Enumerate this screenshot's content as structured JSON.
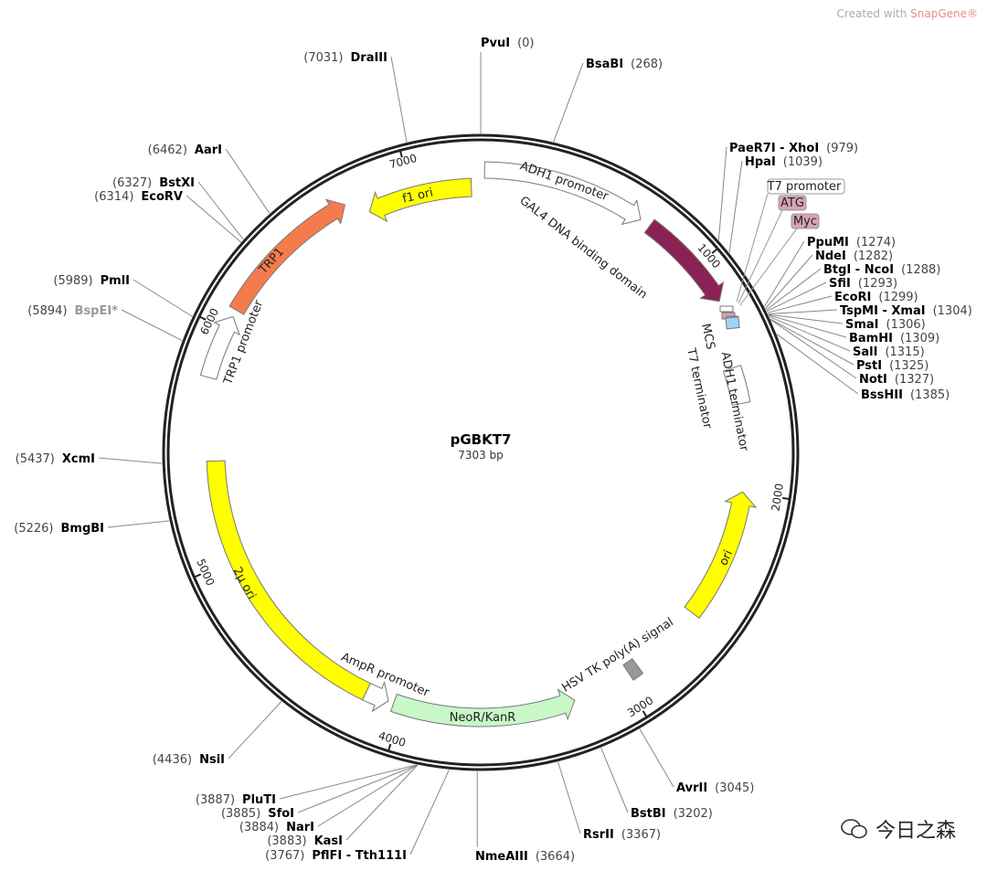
{
  "watermark": {
    "prefix": "Created with ",
    "brand": "SnapGene®"
  },
  "wechat": {
    "text": "今日之森"
  },
  "plasmid": {
    "name": "pGBKT7",
    "length_label": "7303 bp",
    "length": 7303
  },
  "ticks": [
    "1000",
    "2000",
    "3000",
    "4000",
    "5000",
    "6000",
    "7000"
  ],
  "features": [
    {
      "label": "f1 ori",
      "start": 6800,
      "end": 7262,
      "dir": -1,
      "color": "#ffff00",
      "track": "B"
    },
    {
      "label": "ADH1 promoter",
      "start": 16,
      "end": 700,
      "dir": 1,
      "color": "#ffffff",
      "track": "A"
    },
    {
      "label": "GAL4 DNA binding domain",
      "start": 745,
      "end": 1170,
      "dir": 1,
      "color": "#8b2255",
      "track": "A"
    },
    {
      "label": "ADH1 terminator",
      "start": 1450,
      "end": 1610,
      "dir": 0,
      "color": "#ffffff",
      "track": "B"
    },
    {
      "label": "ori",
      "start": 2000,
      "end": 2580,
      "dir": -1,
      "color": "#ffff00",
      "track": "B"
    },
    {
      "label": "HSV TK poly(A) signal",
      "start": 2915,
      "end": 2965,
      "dir": 0,
      "color": "#999999",
      "track": "B"
    },
    {
      "label": "NeoR/KanR",
      "start": 3230,
      "end": 4040,
      "dir": -1,
      "color": "#c8f7c8",
      "track": "B"
    },
    {
      "label": "AmpR promoter",
      "start": 4065,
      "end": 4170,
      "dir": -1,
      "color": "#ffffff",
      "track": "B"
    },
    {
      "label": "2μ ori",
      "start": 4170,
      "end": 5440,
      "dir": 0,
      "color": "#ffff00",
      "track": "B"
    },
    {
      "label": "TRP1 promoter",
      "start": 5790,
      "end": 6060,
      "dir": 1,
      "color": "#ffffff",
      "track": "A"
    },
    {
      "label": "TRP1",
      "start": 6090,
      "end": 6720,
      "dir": 1,
      "color": "#f47c4c",
      "track": "A"
    }
  ],
  "small_features": [
    {
      "label": "T7 promoter",
      "color": "#ffffff"
    },
    {
      "label": "ATG",
      "color": "#d8a3b8"
    },
    {
      "label": "Myc",
      "color": "#d8a3b8"
    },
    {
      "label": "MCS",
      "color": "#d8a3b8"
    },
    {
      "label": "T7 terminator",
      "color": "#9fd2f5"
    }
  ],
  "sites": [
    {
      "name": "PvuI",
      "pos": 0
    },
    {
      "name": "BsaBI",
      "pos": 268
    },
    {
      "name": "PaeR7I - XhoI",
      "pos": 979
    },
    {
      "name": "HpaI",
      "pos": 1039
    },
    {
      "name": "PpuMI",
      "pos": 1274
    },
    {
      "name": "NdeI",
      "pos": 1282
    },
    {
      "name": "BtgI - NcoI",
      "pos": 1288
    },
    {
      "name": "SfiI",
      "pos": 1293
    },
    {
      "name": "EcoRI",
      "pos": 1299
    },
    {
      "name": "TspMI - XmaI",
      "pos": 1304
    },
    {
      "name": "SmaI",
      "pos": 1306
    },
    {
      "name": "BamHI",
      "pos": 1309
    },
    {
      "name": "SalI",
      "pos": 1315
    },
    {
      "name": "PstI",
      "pos": 1325
    },
    {
      "name": "NotI",
      "pos": 1327
    },
    {
      "name": "BssHII",
      "pos": 1385
    },
    {
      "name": "AvrII",
      "pos": 3045
    },
    {
      "name": "BstBI",
      "pos": 3202
    },
    {
      "name": "RsrII",
      "pos": 3367
    },
    {
      "name": "NmeAIII",
      "pos": 3664
    },
    {
      "name": "PflFI - Tth111I",
      "pos": 3767
    },
    {
      "name": "KasI",
      "pos": 3883
    },
    {
      "name": "NarI",
      "pos": 3884
    },
    {
      "name": "SfoI",
      "pos": 3885
    },
    {
      "name": "PluTI",
      "pos": 3887
    },
    {
      "name": "NsiI",
      "pos": 4436
    },
    {
      "name": "BmgBI",
      "pos": 5226
    },
    {
      "name": "XcmI",
      "pos": 5437
    },
    {
      "name": "BspEI*",
      "pos": 5894,
      "grey": true
    },
    {
      "name": "PmlI",
      "pos": 5989
    },
    {
      "name": "EcoRV",
      "pos": 6314
    },
    {
      "name": "BstXI",
      "pos": 6327
    },
    {
      "name": "AarI",
      "pos": 6462
    },
    {
      "name": "DraIII",
      "pos": 7031
    }
  ]
}
